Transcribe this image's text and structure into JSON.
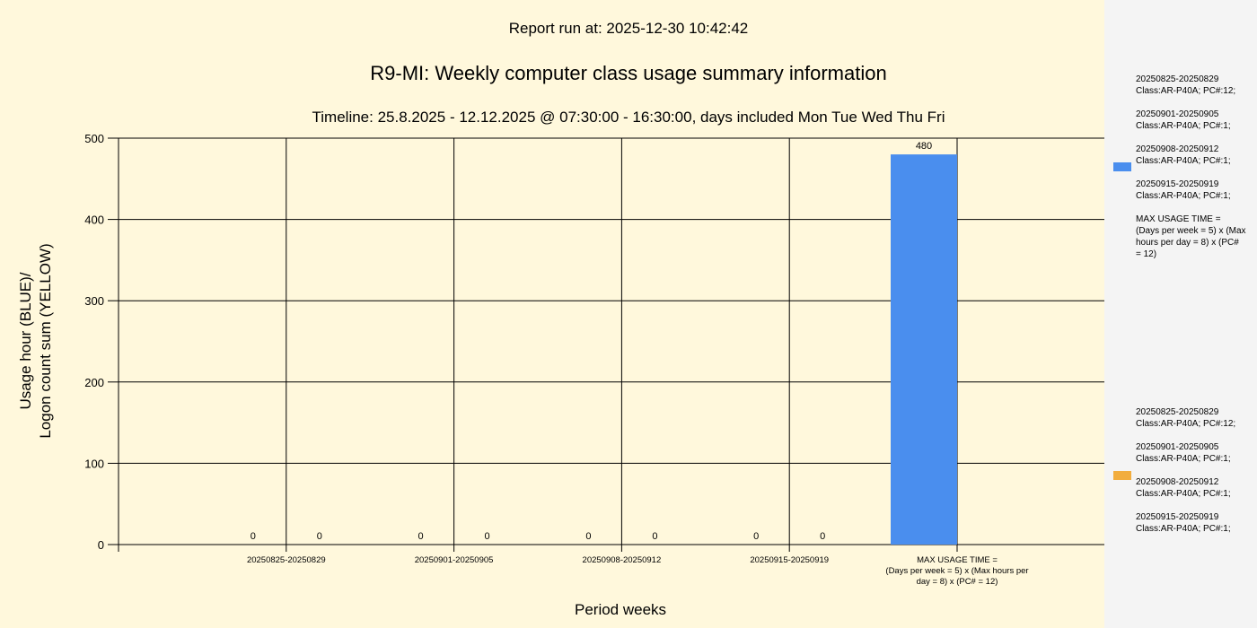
{
  "report_run": "Report run at: 2025-12-30 10:42:42",
  "colors": {
    "blue": "#4a8eee",
    "yellow": "#f2ad3e",
    "plot_bg": "#fff8dc"
  },
  "chart_data": {
    "type": "bar",
    "title": "R9-MI: Weekly computer class usage summary information",
    "subtitle": "Timeline:  25.8.2025  - 12.12.2025  @  07:30:00 -  16:30:00, days included Mon Tue Wed Thu Fri",
    "ylabel": [
      "Usage hour (BLUE)/",
      "Logon count sum (YELLOW)"
    ],
    "xlabel": "Period weeks",
    "ylim": [
      0,
      500
    ],
    "yticks": [
      0,
      100,
      200,
      300,
      400,
      500
    ],
    "grid": true,
    "categories": [
      "20250825-20250829",
      "20250901-20250905",
      "20250908-20250912",
      "20250915-20250919",
      "MAX USAGE TIME =\n(Days per week = 5) x (Max hours per\nday = 8) x (PC# = 12)"
    ],
    "series": [
      {
        "name": "Usage hour",
        "color": "#4a8eee",
        "values": [
          0,
          0,
          0,
          0,
          480
        ]
      },
      {
        "name": "Logon count sum",
        "color": "#f2ad3e",
        "values": [
          0,
          0,
          0,
          0,
          null
        ]
      }
    ],
    "legend_position": "right"
  },
  "legend": {
    "blue_entries": [
      [
        "20250825-20250829",
        "Class:AR-P40A; PC#:12;"
      ],
      [
        "20250901-20250905",
        "Class:AR-P40A; PC#:1;"
      ],
      [
        "20250908-20250912",
        "Class:AR-P40A; PC#:1;"
      ],
      [
        "20250915-20250919",
        "Class:AR-P40A; PC#:1;"
      ],
      [
        "MAX USAGE TIME =",
        " (Days per week = 5) x (Max",
        "hours per day = 8) x (PC#",
        "= 12)"
      ]
    ],
    "yellow_entries": [
      [
        "20250825-20250829",
        "Class:AR-P40A; PC#:12;"
      ],
      [
        "20250901-20250905",
        "Class:AR-P40A; PC#:1;"
      ],
      [
        "20250908-20250912",
        "Class:AR-P40A; PC#:1;"
      ],
      [
        "20250915-20250919",
        "Class:AR-P40A; PC#:1;"
      ]
    ]
  }
}
